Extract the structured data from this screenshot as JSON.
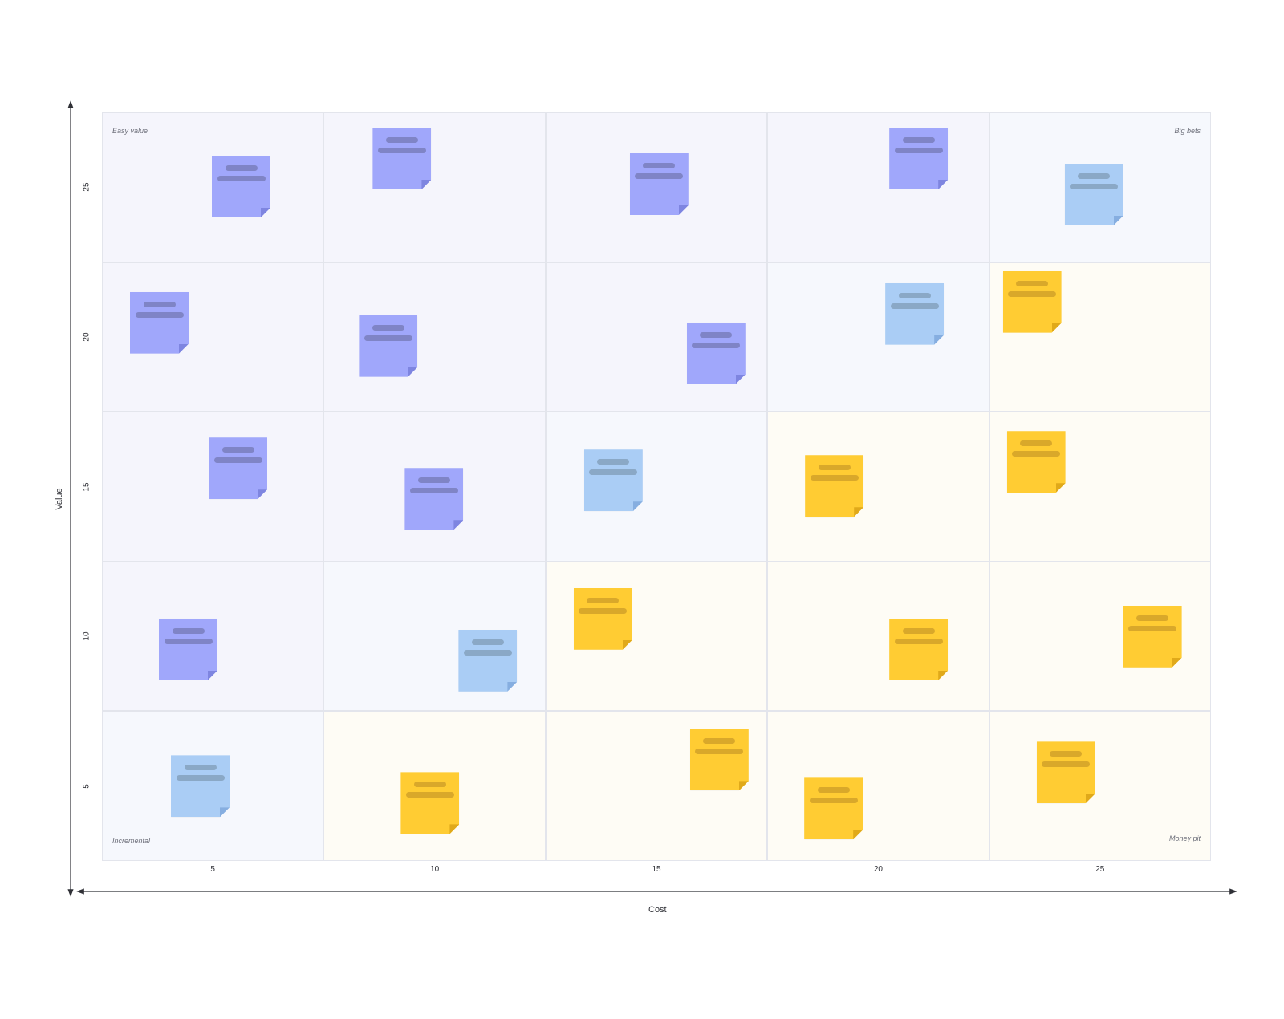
{
  "axes": {
    "x_title": "Cost",
    "y_title": "Value",
    "x_ticks": [
      "5",
      "10",
      "15",
      "20",
      "25"
    ],
    "y_ticks": [
      "25",
      "20",
      "15",
      "10",
      "5"
    ]
  },
  "quadrant_labels": {
    "top_left": "Easy value",
    "top_right": "Big bets",
    "bottom_left": "Incremental",
    "bottom_right": "Money pit"
  },
  "colors": {
    "purple": "#a0a7fb",
    "blue": "#aacdf5",
    "yellow": "#ffcc33"
  },
  "grid": {
    "rows": 5,
    "cols": 5,
    "cell_tones": [
      [
        "purple",
        "purple",
        "purple",
        "purple",
        "blue"
      ],
      [
        "purple",
        "purple",
        "purple",
        "blue",
        "yellow"
      ],
      [
        "purple",
        "purple",
        "blue",
        "yellow",
        "yellow"
      ],
      [
        "purple",
        "blue",
        "yellow",
        "yellow",
        "yellow"
      ],
      [
        "blue",
        "yellow",
        "yellow",
        "yellow",
        "yellow"
      ]
    ]
  },
  "notes": [
    {
      "row": 0,
      "col": 0,
      "color": "purple"
    },
    {
      "row": 0,
      "col": 1,
      "color": "purple"
    },
    {
      "row": 0,
      "col": 2,
      "color": "purple"
    },
    {
      "row": 0,
      "col": 3,
      "color": "purple"
    },
    {
      "row": 0,
      "col": 4,
      "color": "blue"
    },
    {
      "row": 1,
      "col": 0,
      "color": "purple"
    },
    {
      "row": 1,
      "col": 1,
      "color": "purple"
    },
    {
      "row": 1,
      "col": 2,
      "color": "purple"
    },
    {
      "row": 1,
      "col": 3,
      "color": "blue"
    },
    {
      "row": 1,
      "col": 4,
      "color": "yellow"
    },
    {
      "row": 2,
      "col": 0,
      "color": "purple"
    },
    {
      "row": 2,
      "col": 1,
      "color": "purple"
    },
    {
      "row": 2,
      "col": 2,
      "color": "blue"
    },
    {
      "row": 2,
      "col": 3,
      "color": "yellow"
    },
    {
      "row": 2,
      "col": 4,
      "color": "yellow"
    },
    {
      "row": 3,
      "col": 0,
      "color": "purple"
    },
    {
      "row": 3,
      "col": 1,
      "color": "blue"
    },
    {
      "row": 3,
      "col": 2,
      "color": "yellow"
    },
    {
      "row": 3,
      "col": 3,
      "color": "yellow"
    },
    {
      "row": 3,
      "col": 4,
      "color": "yellow"
    },
    {
      "row": 4,
      "col": 0,
      "color": "blue"
    },
    {
      "row": 4,
      "col": 1,
      "color": "yellow"
    },
    {
      "row": 4,
      "col": 2,
      "color": "yellow"
    },
    {
      "row": 4,
      "col": 3,
      "color": "yellow"
    },
    {
      "row": 4,
      "col": 4,
      "color": "yellow"
    }
  ]
}
